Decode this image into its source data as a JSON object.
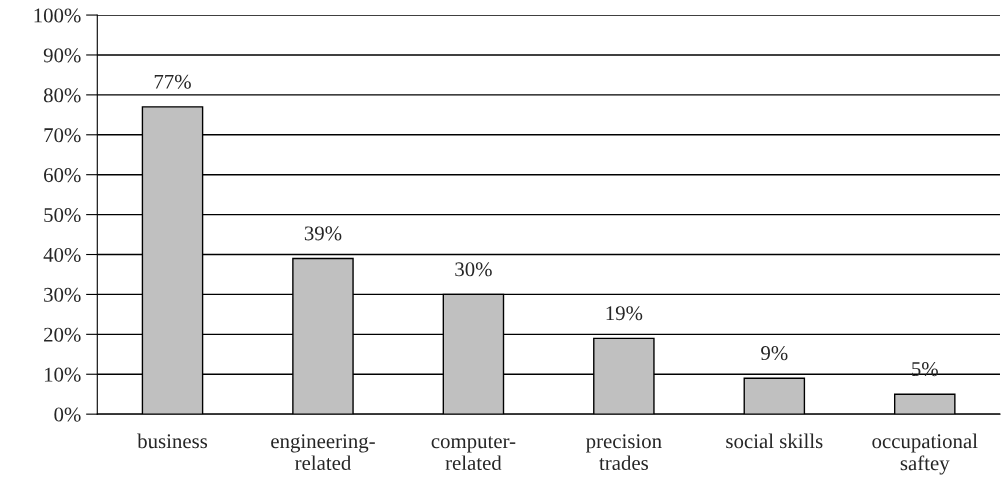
{
  "chart_data": {
    "type": "bar",
    "categories": [
      "business",
      "engineering-\nrelated",
      "computer-\nrelated",
      "precision\ntrades",
      "social skills",
      "occupational\nsaftey"
    ],
    "values": [
      77,
      39,
      30,
      19,
      9,
      5
    ],
    "value_labels": [
      "77%",
      "39%",
      "30%",
      "19%",
      "9%",
      "5%"
    ],
    "color": "#c0c0c0",
    "ylim": [
      0,
      100
    ],
    "yticks": [
      {
        "value": 0,
        "label": "0%"
      },
      {
        "value": 10,
        "label": "10%"
      },
      {
        "value": 20,
        "label": "20%"
      },
      {
        "value": 30,
        "label": "30%"
      },
      {
        "value": 40,
        "label": "40%"
      },
      {
        "value": 50,
        "label": "50%"
      },
      {
        "value": 60,
        "label": "60%"
      },
      {
        "value": 70,
        "label": "70%"
      },
      {
        "value": 80,
        "label": "80%"
      },
      {
        "value": 90,
        "label": "90%"
      },
      {
        "value": 100,
        "label": "100%"
      }
    ],
    "grid": "y"
  }
}
